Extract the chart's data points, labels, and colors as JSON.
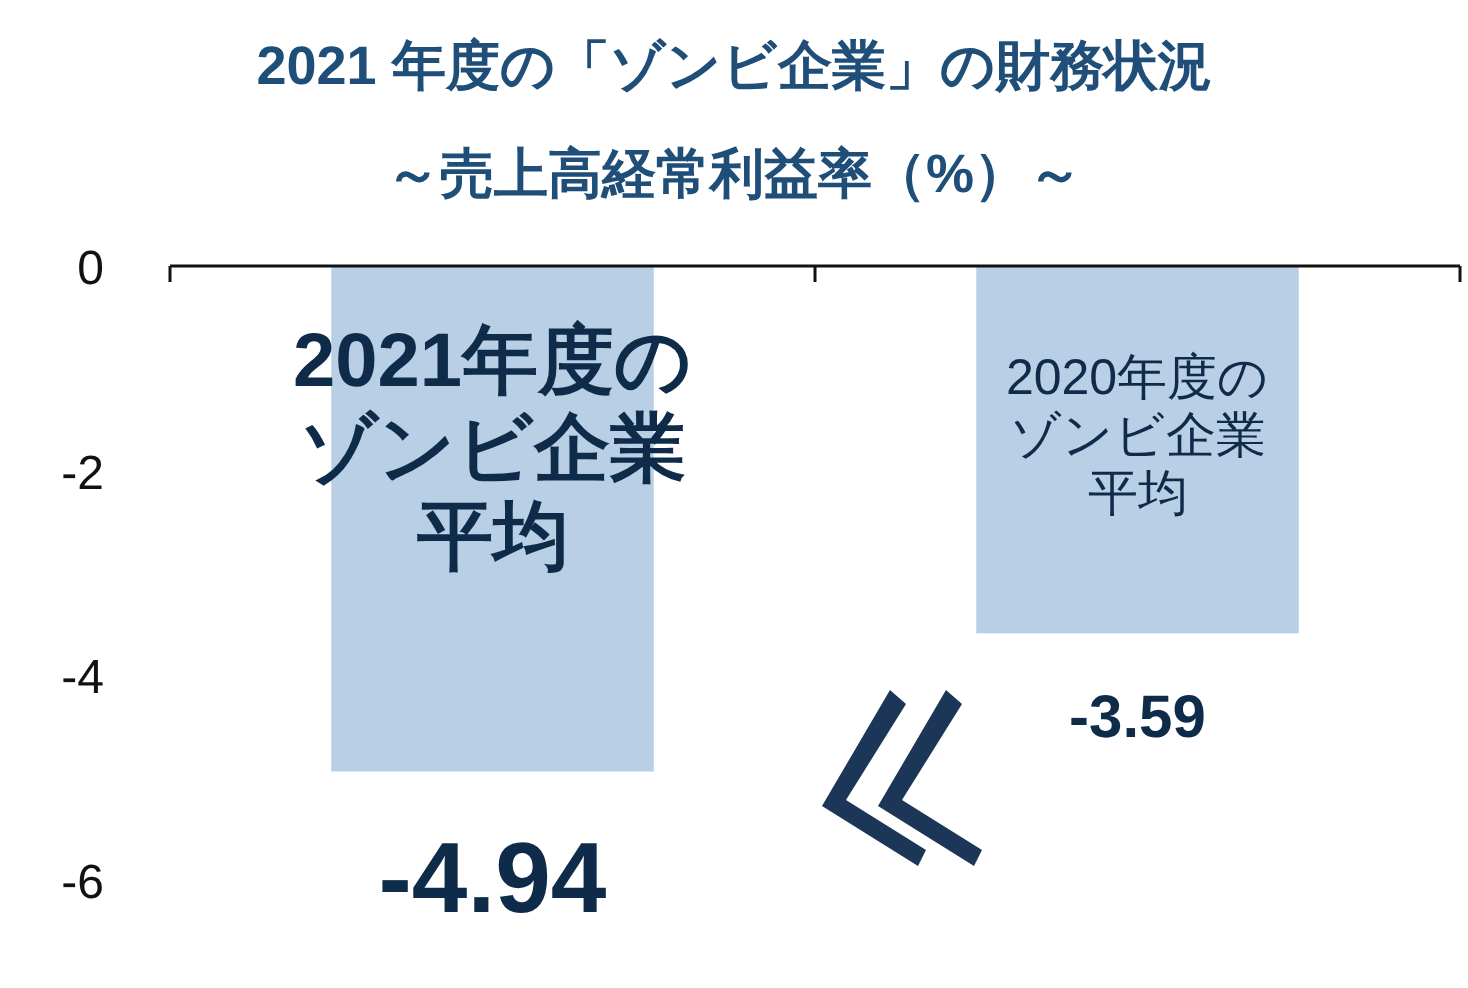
{
  "chart_data": {
    "type": "bar",
    "title": "2021 年度の「ゾンビ企業」の財務状況",
    "subtitle": "～売上高経常利益率（%）～",
    "categories": [
      "2021年度のゾンビ企業平均",
      "2020年度のゾンビ企業平均"
    ],
    "values": [
      -4.94,
      -3.59
    ],
    "color": "#b9cfe6",
    "data_labels": true,
    "ylim": [
      -6,
      0
    ],
    "yticks": [
      -6,
      -4,
      -2,
      0
    ],
    "grid": false
  }
}
